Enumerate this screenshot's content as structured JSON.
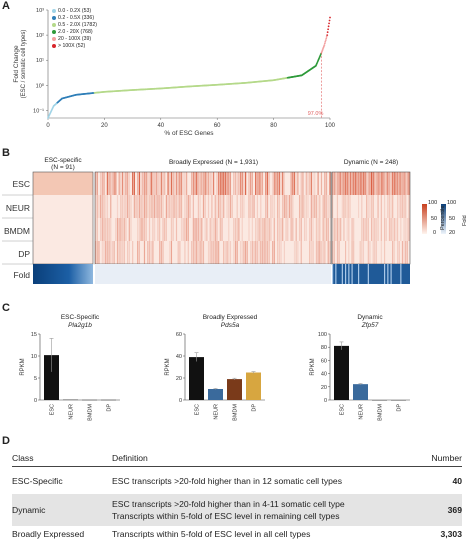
{
  "panelA": {
    "letter": "A",
    "ylabel_line1": "Fold Change",
    "ylabel_line2": "(ESC / somatic cell types)",
    "xlabel": "% of ESC Genes",
    "xticks": [
      "0",
      "20",
      "40",
      "60",
      "80",
      "100"
    ],
    "yticks": [
      "10³",
      "10²",
      "10¹",
      "10⁰",
      "10⁻¹"
    ],
    "annotation": "97.0%",
    "legend": [
      {
        "label": "0.0 - 0.2X (53)",
        "color": "#9fd3e6"
      },
      {
        "label": "0.2 - 0.5X (336)",
        "color": "#2f7fb8"
      },
      {
        "label": "0.5 - 2.0X (1782)",
        "color": "#b5d98a"
      },
      {
        "label": "2.0 - 20X (768)",
        "color": "#2e9a3a"
      },
      {
        "label": "20 - 100X (39)",
        "color": "#f2a0a0"
      },
      {
        "label": "> 100X (52)",
        "color": "#d7262b"
      }
    ],
    "chart_data": {
      "type": "scatter",
      "xlabel": "% of ESC Genes",
      "ylabel": "Fold Change (ESC / somatic cell types)",
      "x": [
        0,
        2,
        5,
        10,
        20,
        30,
        40,
        50,
        60,
        70,
        80,
        90,
        95,
        97,
        98,
        99,
        100
      ],
      "y": [
        0.05,
        0.15,
        0.3,
        0.42,
        0.55,
        0.65,
        0.75,
        0.9,
        1.05,
        1.25,
        1.6,
        2.5,
        6,
        20,
        40,
        100,
        500
      ],
      "ylim": [
        0.05,
        1000
      ],
      "xlim": [
        0,
        100
      ],
      "yscale": "log",
      "annotation_x": 97.0
    }
  },
  "panelB": {
    "letter": "B",
    "groups": [
      {
        "title": "ESC-specific",
        "subtitle": "(N = 91)"
      },
      {
        "title": "Broadly Expressed (N = 1,931)",
        "subtitle": ""
      },
      {
        "title": "Dynamic (N = 248)",
        "subtitle": ""
      }
    ],
    "rows": [
      "ESC",
      "NEUR",
      "BMDM",
      "DP",
      "Fold"
    ],
    "colorbar1": {
      "label": "Percentile",
      "ticks": [
        "100",
        "50",
        "0"
      ]
    },
    "colorbar2": {
      "label": "Fold",
      "ticks": [
        "100",
        "50",
        "20"
      ]
    }
  },
  "panelC": {
    "letter": "C",
    "charts": [
      {
        "title": "ESC-Specific",
        "gene": "Pla2g1b",
        "ylabel": "RPKM",
        "yticks": [
          "15",
          "10",
          "5",
          "0"
        ],
        "chart_data": {
          "type": "bar",
          "categories": [
            "ESC",
            "NEUR",
            "BMDM",
            "DP"
          ],
          "values": [
            10.2,
            0.1,
            0.05,
            0.05
          ],
          "errors": [
            3.8,
            0,
            0,
            0
          ],
          "ylim": [
            0,
            15
          ],
          "colors": [
            "#111111",
            "#444444",
            "#444444",
            "#444444"
          ]
        }
      },
      {
        "title": "Broadly Expressed",
        "gene": "Pds5a",
        "ylabel": "RPKM",
        "yticks": [
          "60",
          "40",
          "20",
          "0"
        ],
        "chart_data": {
          "type": "bar",
          "categories": [
            "ESC",
            "NEUR",
            "BMDM",
            "DP"
          ],
          "values": [
            39,
            10,
            19,
            25
          ],
          "errors": [
            4,
            0.5,
            0.8,
            0.8
          ],
          "ylim": [
            0,
            60
          ],
          "colors": [
            "#111111",
            "#3a6a9c",
            "#7a3a1a",
            "#d7a640"
          ]
        }
      },
      {
        "title": "Dynamic",
        "gene": "Zfp57",
        "ylabel": "RPKM",
        "yticks": [
          "100",
          "80",
          "60",
          "40",
          "20",
          "0"
        ],
        "chart_data": {
          "type": "bar",
          "categories": [
            "ESC",
            "NEUR",
            "BMDM",
            "DP"
          ],
          "values": [
            82,
            24,
            0,
            0
          ],
          "errors": [
            6,
            1,
            0,
            0
          ],
          "ylim": [
            0,
            100
          ],
          "colors": [
            "#111111",
            "#3a6a9c",
            "#444444",
            "#444444"
          ]
        }
      }
    ]
  },
  "panelD": {
    "letter": "D",
    "headers": [
      "Class",
      "Definition",
      "Number"
    ],
    "rows": [
      {
        "class": "ESC-Specific",
        "definition": [
          "ESC transcripts >20-fold higher than in 12 somatic cell types"
        ],
        "number": "40"
      },
      {
        "class": "Dynamic",
        "definition": [
          "ESC transcripts >20-fold higher than in 4-11 somatic cell type",
          "Transcripts within 5-fold of ESC level in remaining cell types"
        ],
        "number": "369"
      },
      {
        "class": "Broadly Expressed",
        "definition": [
          "Transcripts within 5-fold of ESC level in all cell types"
        ],
        "number": "3,303"
      }
    ]
  }
}
